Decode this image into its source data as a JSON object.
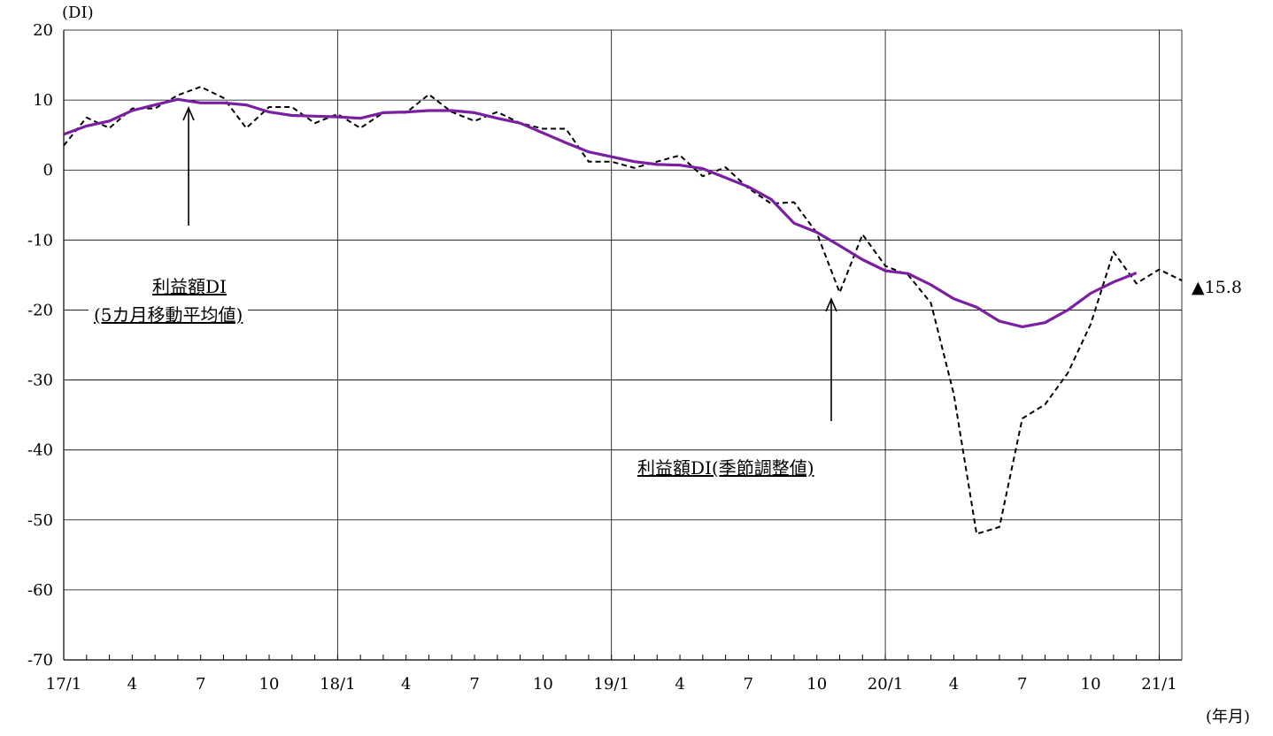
{
  "chart_data": {
    "type": "line",
    "ylabel": "(DI)",
    "xlabel": "(年月)",
    "ylim": [
      -70,
      20
    ],
    "yticks": [
      20,
      10,
      0,
      -10,
      -20,
      -30,
      -40,
      -50,
      -60,
      -70
    ],
    "xlim": [
      "2017-01",
      "2021-03"
    ],
    "xticks": [
      {
        "month": "2017-01",
        "label": "17/1"
      },
      {
        "month": "2017-04",
        "label": "4"
      },
      {
        "month": "2017-07",
        "label": "7"
      },
      {
        "month": "2017-10",
        "label": "10"
      },
      {
        "month": "2018-01",
        "label": "18/1"
      },
      {
        "month": "2018-04",
        "label": "4"
      },
      {
        "month": "2018-07",
        "label": "7"
      },
      {
        "month": "2018-10",
        "label": "10"
      },
      {
        "month": "2019-01",
        "label": "19/1"
      },
      {
        "month": "2019-04",
        "label": "4"
      },
      {
        "month": "2019-07",
        "label": "7"
      },
      {
        "month": "2019-10",
        "label": "10"
      },
      {
        "month": "2020-01",
        "label": "20/1"
      },
      {
        "month": "2020-04",
        "label": "4"
      },
      {
        "month": "2020-07",
        "label": "7"
      },
      {
        "month": "2020-10",
        "label": "10"
      },
      {
        "month": "2021-01",
        "label": "21/1"
      }
    ],
    "grid": {
      "horizontal": true,
      "vertical_years": true
    },
    "series": [
      {
        "name": "利益額DI(季節調整値)",
        "color": "#000000",
        "style": "dashed",
        "x": [
          "2017-01",
          "2017-02",
          "2017-03",
          "2017-04",
          "2017-05",
          "2017-06",
          "2017-07",
          "2017-08",
          "2017-09",
          "2017-10",
          "2017-11",
          "2017-12",
          "2018-01",
          "2018-02",
          "2018-03",
          "2018-04",
          "2018-05",
          "2018-06",
          "2018-07",
          "2018-08",
          "2018-09",
          "2018-10",
          "2018-11",
          "2018-12",
          "2019-01",
          "2019-02",
          "2019-03",
          "2019-04",
          "2019-05",
          "2019-06",
          "2019-07",
          "2019-08",
          "2019-09",
          "2019-10",
          "2019-11",
          "2019-12",
          "2020-01",
          "2020-02",
          "2020-03",
          "2020-04",
          "2020-05",
          "2020-06",
          "2020-07",
          "2020-08",
          "2020-09",
          "2020-10",
          "2020-11",
          "2020-12",
          "2021-01",
          "2021-02"
        ],
        "values": [
          3.5,
          7.5,
          6.0,
          8.8,
          8.8,
          10.7,
          11.9,
          10.3,
          6.0,
          9.0,
          9.0,
          6.7,
          8.0,
          6.0,
          8.2,
          8.2,
          10.8,
          8.3,
          7.0,
          8.3,
          6.7,
          5.9,
          5.9,
          1.2,
          1.2,
          0.3,
          1.2,
          2.1,
          -0.9,
          0.4,
          -2.6,
          -4.8,
          -4.6,
          -9.0,
          -17.5,
          -9.2,
          -13.7,
          -15.0,
          -19.0,
          -32.0,
          -52.0,
          -51.0,
          -35.5,
          -33.5,
          -29.0,
          -22.0,
          -11.7,
          -16.2,
          -14.2,
          -15.8
        ]
      },
      {
        "name": "利益額DI(5カ月移動平均値)",
        "color": "#7b1fa2",
        "style": "solid",
        "x": [
          "2017-01",
          "2017-02",
          "2017-03",
          "2017-04",
          "2017-05",
          "2017-06",
          "2017-07",
          "2017-08",
          "2017-09",
          "2017-10",
          "2017-11",
          "2017-12",
          "2018-01",
          "2018-02",
          "2018-03",
          "2018-04",
          "2018-05",
          "2018-06",
          "2018-07",
          "2018-08",
          "2018-09",
          "2018-10",
          "2018-11",
          "2018-12",
          "2019-01",
          "2019-02",
          "2019-03",
          "2019-04",
          "2019-05",
          "2019-06",
          "2019-07",
          "2019-08",
          "2019-09",
          "2019-10",
          "2019-11",
          "2019-12",
          "2020-01",
          "2020-02",
          "2020-03",
          "2020-04",
          "2020-05",
          "2020-06",
          "2020-07",
          "2020-08",
          "2020-09",
          "2020-10",
          "2020-11",
          "2020-12"
        ],
        "values": [
          5.1,
          6.3,
          7.0,
          8.5,
          9.3,
          10.1,
          9.6,
          9.6,
          9.3,
          8.3,
          7.8,
          7.7,
          7.6,
          7.4,
          8.2,
          8.3,
          8.5,
          8.5,
          8.2,
          7.4,
          6.7,
          5.3,
          3.9,
          2.6,
          1.9,
          1.2,
          0.8,
          0.7,
          0.2,
          -1.1,
          -2.4,
          -4.2,
          -7.6,
          -8.9,
          -10.8,
          -12.8,
          -14.4,
          -14.8,
          -16.4,
          -18.4,
          -19.6,
          -21.6,
          -22.4,
          -21.8,
          -20.0,
          -17.6,
          -16.0,
          -14.7
        ]
      }
    ],
    "annotations": {
      "moving_average_label_line1": "利益額DI",
      "moving_average_label_line2": "(5カ月移動平均値)",
      "seasonal_label": "利益額DI(季節調整値)",
      "last_value_label": "▲15.8"
    }
  }
}
